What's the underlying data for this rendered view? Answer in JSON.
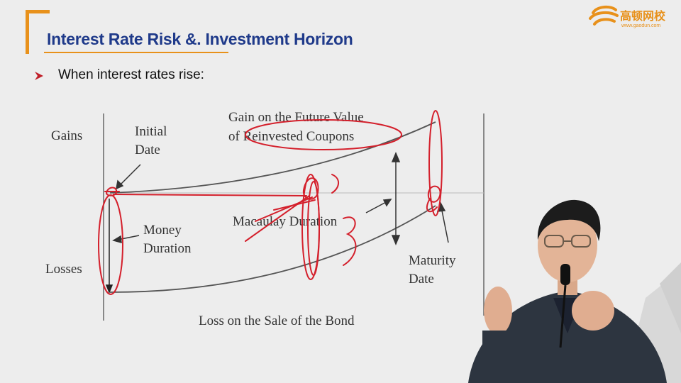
{
  "header": {
    "title": "Interest Rate Risk &. Investment Horizon",
    "logo_text": "高顿网校",
    "logo_url": "www.gaodun.com"
  },
  "bullet": {
    "text": "When interest rates rise:"
  },
  "diagram": {
    "gains_label": "Gains",
    "losses_label": "Losses",
    "initial_date": [
      "Initial",
      "Date"
    ],
    "future_value": [
      "Gain on the Future Value",
      "of Reinvested Coupons"
    ],
    "money_duration": [
      "Money",
      "Duration"
    ],
    "macaulay_duration": "Macaulay Duration",
    "maturity_date": [
      "Maturity",
      "Date"
    ],
    "loss_on_sale": "Loss on the Sale of the Bond"
  },
  "colors": {
    "accent": "#e8911b",
    "title": "#1f3a8a",
    "annotation": "#d4202c",
    "bullet": "#c0202a"
  }
}
